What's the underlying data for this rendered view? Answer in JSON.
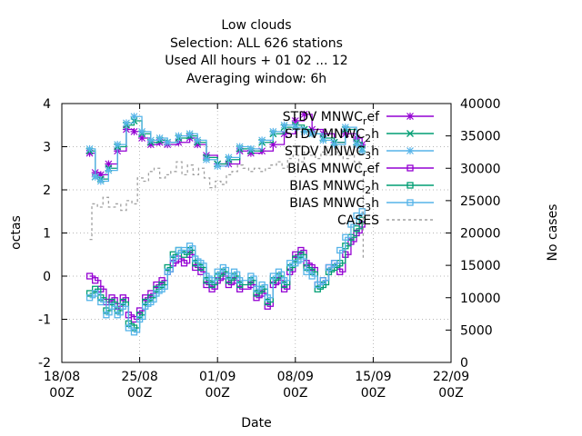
{
  "chart_data": {
    "type": "line",
    "title_lines": [
      "Low clouds",
      "Selection: ALL    626 stations",
      "Used  All hours + 01 02 ... 12",
      "Averaging window:  6h"
    ],
    "xlabel": "Date",
    "ylabel": "octas",
    "y2label": "No cases",
    "x_ticks": [
      "18/08\n00Z",
      "25/08\n00Z",
      "01/09\n00Z",
      "08/09\n00Z",
      "15/09\n00Z",
      "22/09\n00Z"
    ],
    "x_range_days": [
      0,
      35
    ],
    "ylim": [
      -2,
      4
    ],
    "y_ticks": [
      "-2",
      "-1",
      "0",
      "1",
      "2",
      "3",
      "4"
    ],
    "y2lim": [
      0,
      40000
    ],
    "y2_ticks": [
      "0",
      "5000",
      "10000",
      "15000",
      "20000",
      "25000",
      "30000",
      "35000",
      "40000"
    ],
    "grid": true,
    "legend_position": "top-right",
    "series": [
      {
        "name": "STDV MNWC_ref",
        "legend_main": "STDV MNWC",
        "legend_sub": "r",
        "legend_tail": "ef",
        "color": "#9400d3",
        "marker": "star",
        "axis": "y",
        "points": [
          [
            2.5,
            2.85
          ],
          [
            3,
            2.4
          ],
          [
            3.5,
            2.35
          ],
          [
            4.2,
            2.6
          ],
          [
            5,
            2.9
          ],
          [
            5.8,
            3.4
          ],
          [
            6.5,
            3.35
          ],
          [
            7.2,
            3.2
          ],
          [
            8,
            3.05
          ],
          [
            8.8,
            3.1
          ],
          [
            9.5,
            3.05
          ],
          [
            10.5,
            3.1
          ],
          [
            11.5,
            3.2
          ],
          [
            12.2,
            3.05
          ],
          [
            13,
            2.8
          ],
          [
            14,
            2.6
          ],
          [
            15,
            2.6
          ],
          [
            16,
            2.9
          ],
          [
            17,
            2.85
          ],
          [
            18,
            2.9
          ],
          [
            19,
            3.05
          ],
          [
            20,
            3.3
          ],
          [
            21,
            3.6
          ],
          [
            21.8,
            3.75
          ],
          [
            22.5,
            3.4
          ],
          [
            23.5,
            3.3
          ],
          [
            24.5,
            3.1
          ],
          [
            25.5,
            3.3
          ],
          [
            26.5,
            3.2
          ],
          [
            27,
            3.05
          ]
        ]
      },
      {
        "name": "STDV MNWC_2h",
        "legend_main": "STDV MNWC",
        "legend_sub": "2",
        "legend_tail": "h",
        "color": "#009e73",
        "marker": "x",
        "axis": "y",
        "points": [
          [
            2.5,
            2.9
          ],
          [
            3,
            2.3
          ],
          [
            3.5,
            2.25
          ],
          [
            4.2,
            2.5
          ],
          [
            5,
            3.0
          ],
          [
            5.8,
            3.5
          ],
          [
            6.5,
            3.6
          ],
          [
            7.2,
            3.3
          ],
          [
            8,
            3.1
          ],
          [
            8.8,
            3.15
          ],
          [
            9.5,
            3.1
          ],
          [
            10.5,
            3.2
          ],
          [
            11.5,
            3.25
          ],
          [
            12.2,
            3.1
          ],
          [
            13,
            2.75
          ],
          [
            14,
            2.6
          ],
          [
            15,
            2.7
          ],
          [
            16,
            2.95
          ],
          [
            17,
            2.9
          ],
          [
            18,
            3.1
          ],
          [
            19,
            3.3
          ],
          [
            20,
            3.45
          ],
          [
            21,
            3.5
          ],
          [
            21.8,
            3.4
          ],
          [
            22.5,
            3.3
          ],
          [
            23.5,
            3.2
          ],
          [
            24.5,
            3.1
          ],
          [
            25.5,
            3.4
          ],
          [
            26.5,
            3.1
          ],
          [
            27,
            2.95
          ]
        ]
      },
      {
        "name": "STDV MNWC_3h",
        "legend_main": "STDV MNWC",
        "legend_sub": "3",
        "legend_tail": "h",
        "color": "#56b4e9",
        "marker": "star",
        "axis": "y",
        "points": [
          [
            2.5,
            2.95
          ],
          [
            3,
            2.3
          ],
          [
            3.5,
            2.2
          ],
          [
            4.2,
            2.45
          ],
          [
            5,
            3.05
          ],
          [
            5.8,
            3.55
          ],
          [
            6.5,
            3.7
          ],
          [
            7.2,
            3.35
          ],
          [
            8,
            3.15
          ],
          [
            8.8,
            3.2
          ],
          [
            9.5,
            3.1
          ],
          [
            10.5,
            3.25
          ],
          [
            11.5,
            3.3
          ],
          [
            12.2,
            3.15
          ],
          [
            13,
            2.7
          ],
          [
            14,
            2.55
          ],
          [
            15,
            2.75
          ],
          [
            16,
            3.0
          ],
          [
            17,
            2.95
          ],
          [
            18,
            3.15
          ],
          [
            19,
            3.35
          ],
          [
            20,
            3.5
          ],
          [
            21,
            3.45
          ],
          [
            21.8,
            3.35
          ],
          [
            22.5,
            3.3
          ],
          [
            23.5,
            3.15
          ],
          [
            24.5,
            3.05
          ],
          [
            25.5,
            3.45
          ],
          [
            26.5,
            3.05
          ],
          [
            27,
            2.9
          ]
        ]
      },
      {
        "name": "BIAS MNWC_ref",
        "legend_main": "BIAS MNWC",
        "legend_sub": "r",
        "legend_tail": "ef",
        "color": "#9400d3",
        "marker": "square",
        "axis": "y",
        "points": [
          [
            2.5,
            0.0
          ],
          [
            3,
            -0.1
          ],
          [
            3.5,
            -0.3
          ],
          [
            4,
            -0.6
          ],
          [
            4.5,
            -0.5
          ],
          [
            5,
            -0.7
          ],
          [
            5.5,
            -0.5
          ],
          [
            6,
            -0.9
          ],
          [
            6.5,
            -1.0
          ],
          [
            7,
            -0.8
          ],
          [
            7.5,
            -0.5
          ],
          [
            8,
            -0.4
          ],
          [
            8.5,
            -0.2
          ],
          [
            9,
            -0.1
          ],
          [
            9.5,
            0.1
          ],
          [
            10,
            0.3
          ],
          [
            10.5,
            0.4
          ],
          [
            11,
            0.3
          ],
          [
            11.5,
            0.5
          ],
          [
            12,
            0.2
          ],
          [
            12.5,
            0.1
          ],
          [
            13,
            -0.2
          ],
          [
            13.5,
            -0.3
          ],
          [
            14,
            -0.1
          ],
          [
            14.5,
            0.0
          ],
          [
            15,
            -0.2
          ],
          [
            15.5,
            -0.1
          ],
          [
            16,
            -0.3
          ],
          [
            17,
            -0.2
          ],
          [
            17.5,
            -0.5
          ],
          [
            18,
            -0.4
          ],
          [
            18.5,
            -0.7
          ],
          [
            19,
            -0.2
          ],
          [
            19.5,
            -0.1
          ],
          [
            20,
            -0.3
          ],
          [
            20.5,
            0.1
          ],
          [
            21,
            0.5
          ],
          [
            21.5,
            0.6
          ],
          [
            22,
            0.3
          ],
          [
            22.5,
            0.2
          ],
          [
            23,
            -0.2
          ],
          [
            23.5,
            -0.1
          ],
          [
            24,
            0.2
          ],
          [
            24.5,
            0.3
          ],
          [
            25,
            0.1
          ],
          [
            25.5,
            0.5
          ],
          [
            26,
            0.8
          ],
          [
            26.5,
            1.0
          ],
          [
            27,
            1.2
          ]
        ]
      },
      {
        "name": "BIAS MNWC_2h",
        "legend_main": "BIAS MNWC",
        "legend_sub": "2",
        "legend_tail": "h",
        "color": "#009e73",
        "marker": "square",
        "axis": "y",
        "points": [
          [
            2.5,
            -0.4
          ],
          [
            3,
            -0.3
          ],
          [
            3.5,
            -0.5
          ],
          [
            4,
            -0.8
          ],
          [
            4.5,
            -0.6
          ],
          [
            5,
            -0.8
          ],
          [
            5.5,
            -0.6
          ],
          [
            6,
            -1.1
          ],
          [
            6.5,
            -1.2
          ],
          [
            7,
            -0.9
          ],
          [
            7.5,
            -0.6
          ],
          [
            8,
            -0.5
          ],
          [
            8.5,
            -0.3
          ],
          [
            9,
            -0.2
          ],
          [
            9.5,
            0.2
          ],
          [
            10,
            0.5
          ],
          [
            10.5,
            0.6
          ],
          [
            11,
            0.5
          ],
          [
            11.5,
            0.6
          ],
          [
            12,
            0.3
          ],
          [
            12.5,
            0.2
          ],
          [
            13,
            -0.1
          ],
          [
            13.5,
            -0.2
          ],
          [
            14,
            0.0
          ],
          [
            14.5,
            0.1
          ],
          [
            15,
            -0.1
          ],
          [
            15.5,
            0.0
          ],
          [
            16,
            -0.2
          ],
          [
            17,
            -0.1
          ],
          [
            17.5,
            -0.4
          ],
          [
            18,
            -0.3
          ],
          [
            18.5,
            -0.6
          ],
          [
            19,
            -0.1
          ],
          [
            19.5,
            0.0
          ],
          [
            20,
            -0.2
          ],
          [
            20.5,
            0.2
          ],
          [
            21,
            0.4
          ],
          [
            21.5,
            0.5
          ],
          [
            22,
            0.2
          ],
          [
            22.5,
            0.1
          ],
          [
            23,
            -0.3
          ],
          [
            23.5,
            -0.2
          ],
          [
            24,
            0.1
          ],
          [
            24.5,
            0.2
          ],
          [
            25,
            0.3
          ],
          [
            25.5,
            0.7
          ],
          [
            26,
            0.9
          ],
          [
            26.5,
            1.1
          ],
          [
            27,
            1.3
          ]
        ]
      },
      {
        "name": "BIAS MNWC_3h",
        "legend_main": "BIAS MNWC",
        "legend_sub": "3",
        "legend_tail": "h",
        "color": "#56b4e9",
        "marker": "square",
        "axis": "y",
        "points": [
          [
            2.5,
            -0.5
          ],
          [
            3,
            -0.4
          ],
          [
            3.5,
            -0.6
          ],
          [
            4,
            -0.9
          ],
          [
            4.5,
            -0.7
          ],
          [
            5,
            -0.9
          ],
          [
            5.5,
            -0.7
          ],
          [
            6,
            -1.2
          ],
          [
            6.5,
            -1.3
          ],
          [
            7,
            -1.0
          ],
          [
            7.5,
            -0.7
          ],
          [
            8,
            -0.6
          ],
          [
            8.5,
            -0.4
          ],
          [
            9,
            -0.3
          ],
          [
            9.5,
            0.1
          ],
          [
            10,
            0.4
          ],
          [
            10.5,
            0.6
          ],
          [
            11,
            0.6
          ],
          [
            11.5,
            0.7
          ],
          [
            12,
            0.4
          ],
          [
            12.5,
            0.3
          ],
          [
            13,
            0.0
          ],
          [
            13.5,
            -0.1
          ],
          [
            14,
            0.1
          ],
          [
            14.5,
            0.2
          ],
          [
            15,
            0.0
          ],
          [
            15.5,
            0.1
          ],
          [
            16,
            -0.1
          ],
          [
            17,
            0.0
          ],
          [
            17.5,
            -0.3
          ],
          [
            18,
            -0.2
          ],
          [
            18.5,
            -0.5
          ],
          [
            19,
            0.0
          ],
          [
            19.5,
            0.1
          ],
          [
            20,
            -0.1
          ],
          [
            20.5,
            0.3
          ],
          [
            21,
            0.3
          ],
          [
            21.5,
            0.4
          ],
          [
            22,
            0.1
          ],
          [
            22.5,
            0.0
          ],
          [
            23,
            -0.2
          ],
          [
            23.5,
            -0.1
          ],
          [
            24,
            0.2
          ],
          [
            24.5,
            0.3
          ],
          [
            25,
            0.6
          ],
          [
            25.5,
            0.9
          ],
          [
            26,
            1.2
          ],
          [
            26.5,
            1.4
          ],
          [
            27,
            1.5
          ]
        ]
      },
      {
        "name": "CASES",
        "legend_main": "CASES",
        "legend_sub": "",
        "legend_tail": "",
        "color": "#a0a0a0",
        "marker": "none",
        "dashed": true,
        "axis": "y2",
        "points": [
          [
            2.5,
            19000
          ],
          [
            2.7,
            24500
          ],
          [
            3.2,
            24000
          ],
          [
            3.7,
            25500
          ],
          [
            4.2,
            24000
          ],
          [
            4.8,
            24500
          ],
          [
            5.3,
            23500
          ],
          [
            5.8,
            25000
          ],
          [
            6.3,
            24500
          ],
          [
            6.8,
            28500
          ],
          [
            7.3,
            28000
          ],
          [
            7.8,
            29500
          ],
          [
            8.3,
            30000
          ],
          [
            8.8,
            28500
          ],
          [
            9.3,
            29000
          ],
          [
            9.8,
            29500
          ],
          [
            10.3,
            31000
          ],
          [
            10.8,
            29000
          ],
          [
            11.3,
            30500
          ],
          [
            11.8,
            29000
          ],
          [
            12.3,
            30000
          ],
          [
            12.8,
            28500
          ],
          [
            13.3,
            27000
          ],
          [
            13.8,
            28000
          ],
          [
            14.3,
            27500
          ],
          [
            14.8,
            29000
          ],
          [
            15.3,
            29500
          ],
          [
            15.8,
            30500
          ],
          [
            16.3,
            30000
          ],
          [
            16.8,
            29500
          ],
          [
            17.3,
            30000
          ],
          [
            17.8,
            29500
          ],
          [
            18.3,
            30000
          ],
          [
            18.8,
            30500
          ],
          [
            19.3,
            31000
          ],
          [
            19.8,
            30000
          ],
          [
            20.3,
            31500
          ],
          [
            20.8,
            32000
          ],
          [
            21.3,
            31000
          ],
          [
            21.8,
            32500
          ],
          [
            22.3,
            32000
          ],
          [
            22.8,
            31500
          ],
          [
            23.3,
            32500
          ],
          [
            23.8,
            32000
          ],
          [
            24.3,
            33000
          ],
          [
            24.8,
            32000
          ],
          [
            25.3,
            31500
          ],
          [
            25.8,
            32000
          ],
          [
            26.3,
            31000
          ],
          [
            26.8,
            29500
          ],
          [
            27.1,
            16000
          ]
        ]
      }
    ]
  }
}
